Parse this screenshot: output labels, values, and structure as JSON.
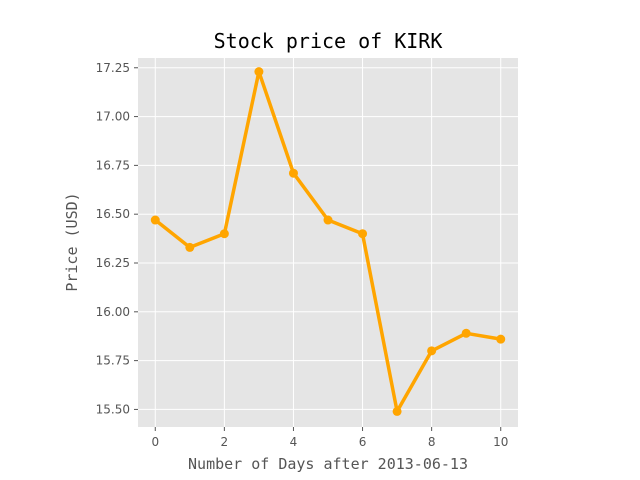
{
  "chart_data": {
    "type": "line",
    "title": "Stock price of KIRK",
    "xlabel": "Number of Days after 2013-06-13",
    "ylabel": "Price (USD)",
    "xlim": [
      -0.5,
      10.5
    ],
    "ylim": [
      15.41,
      17.3
    ],
    "x_ticks": [
      0,
      2,
      4,
      6,
      8,
      10
    ],
    "y_ticks": [
      15.5,
      15.75,
      16.0,
      16.25,
      16.5,
      16.75,
      17.0,
      17.25
    ],
    "x_tick_labels": [
      "0",
      "2",
      "4",
      "6",
      "8",
      "10"
    ],
    "y_tick_labels": [
      "15.50",
      "15.75",
      "16.00",
      "16.25",
      "16.50",
      "16.75",
      "17.00",
      "17.25"
    ],
    "grid": true,
    "background_color": "#e5e5e5",
    "series": [
      {
        "color": "#ffa500",
        "x": [
          0,
          1,
          2,
          3,
          4,
          5,
          6,
          7,
          8,
          9,
          10
        ],
        "values": [
          16.47,
          16.33,
          16.4,
          17.23,
          16.71,
          16.47,
          16.4,
          15.49,
          15.8,
          15.89,
          15.86
        ]
      }
    ]
  }
}
